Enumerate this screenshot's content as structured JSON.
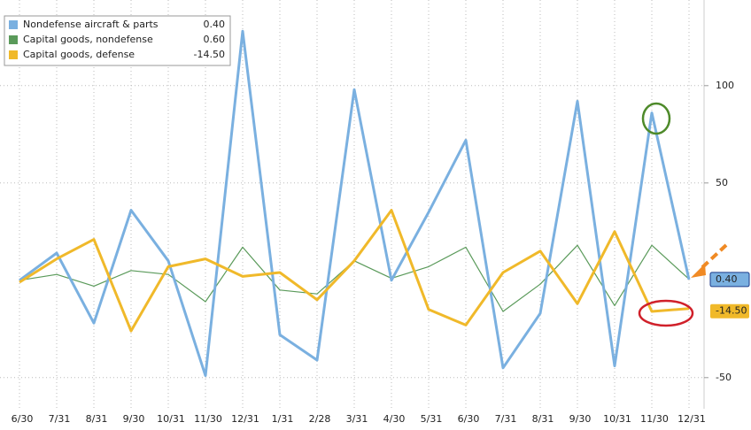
{
  "chart_data": {
    "type": "line",
    "categories": [
      "6/30",
      "7/31",
      "8/31",
      "9/30",
      "10/31",
      "11/30",
      "12/31",
      "1/31",
      "2/28",
      "3/31",
      "4/30",
      "5/31",
      "6/30",
      "7/31",
      "8/31",
      "9/30",
      "10/31",
      "11/30",
      "12/31"
    ],
    "series": [
      {
        "name": "Nondefense aircraft & parts",
        "color": "#7ab0e0",
        "values": [
          0,
          14,
          -22,
          36,
          10,
          -49,
          128,
          -28,
          -41,
          98,
          0,
          35,
          72,
          -45,
          -17,
          92,
          -44,
          86,
          0.4
        ],
        "value_labels": [
          null,
          null,
          null,
          null,
          null,
          null,
          null,
          null,
          null,
          null,
          null,
          null,
          null,
          null,
          null,
          null,
          null,
          null,
          "0.40"
        ]
      },
      {
        "name": "Capital goods, nondefense",
        "color": "#5a9a5a",
        "values": [
          0,
          3,
          -3,
          5,
          3,
          -11,
          17,
          -5,
          -7,
          10,
          1,
          7,
          17,
          -16,
          -2,
          18,
          -13,
          18,
          0.6
        ],
        "value_labels": [
          null,
          null,
          null,
          null,
          null,
          null,
          null,
          null,
          null,
          null,
          null,
          null,
          null,
          null,
          null,
          null,
          null,
          null,
          "0.60"
        ]
      },
      {
        "name": "Capital goods, defense",
        "color": "#f0b92a",
        "values": [
          -1,
          11,
          21,
          -26,
          7,
          11,
          2,
          4,
          -10,
          10,
          36,
          -15,
          -23,
          4,
          15,
          -12,
          25,
          -16,
          -14.5
        ],
        "value_labels": [
          null,
          null,
          null,
          null,
          null,
          null,
          null,
          null,
          null,
          null,
          null,
          null,
          null,
          null,
          null,
          null,
          null,
          null,
          "-14.50"
        ]
      }
    ],
    "ylim": [
      -66,
      144
    ],
    "yticks": [
      -50,
      50,
      100
    ],
    "grid": true
  }
}
